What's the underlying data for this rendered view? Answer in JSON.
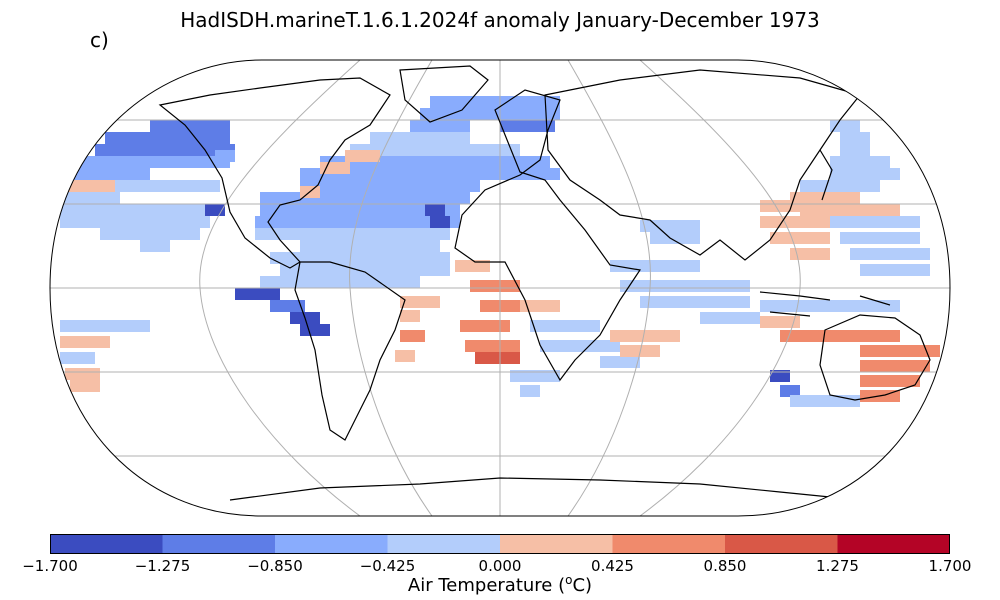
{
  "title": "HadISDH.marineT.1.6.1.2024f anomaly January-December 1973",
  "panel_label": "c)",
  "colorbar": {
    "label_prefix": "Air Temperature (",
    "label_sup": "o",
    "label_suffix": "C)",
    "ticks": [
      "−1.700",
      "−1.275",
      "−0.850",
      "−0.425",
      "0.000",
      "0.425",
      "0.850",
      "1.275",
      "1.700"
    ],
    "colors": [
      "#3b4cc0",
      "#5e7de7",
      "#89acfd",
      "#b3cdfb",
      "#f6bfa6",
      "#f08a6c",
      "#d95847",
      "#b40426"
    ]
  },
  "map": {
    "projection": "Robinson",
    "gridlines": true,
    "coastlines": true,
    "variable": "marine air temperature anomaly"
  }
}
